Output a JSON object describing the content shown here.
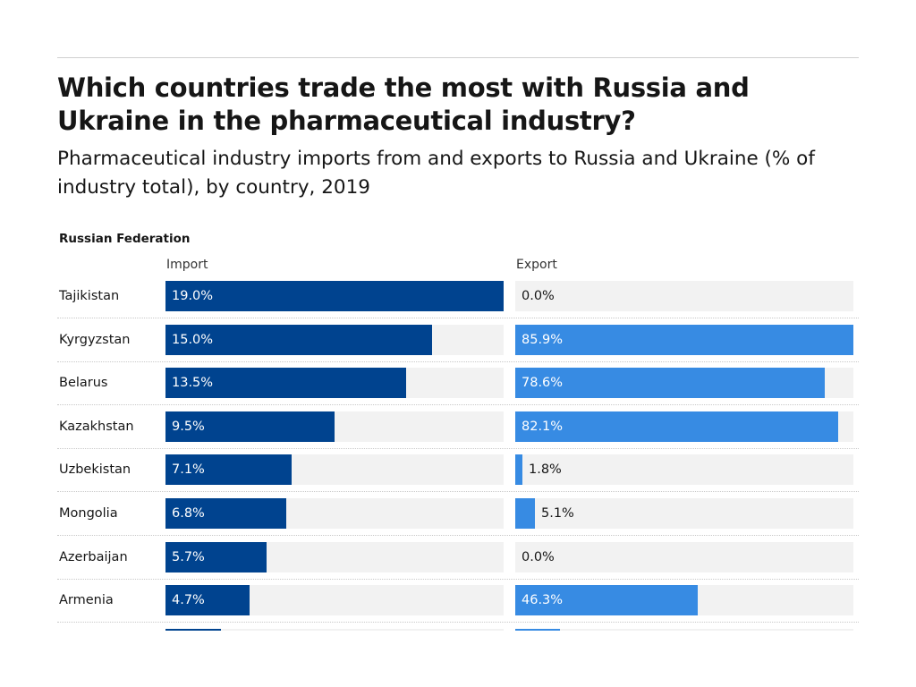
{
  "header": {
    "title": "Which countries trade the most with Russia and Ukraine in the pharmaceutical industry?",
    "subtitle": "Pharmaceutical industry imports from and exports to Russia and Ukraine (% of industry total), by country, 2019"
  },
  "chart_data": {
    "type": "bar",
    "orientation": "horizontal",
    "group": "Russian Federation",
    "columns": [
      "Import",
      "Export"
    ],
    "colors": {
      "Import": "#00438f",
      "Export": "#378be3",
      "track": "#f2f2f2"
    },
    "rows": [
      {
        "country": "Tajikistan",
        "import": 19.0,
        "import_label": "19.0%",
        "export": 0.0,
        "export_label": "0.0%"
      },
      {
        "country": "Kyrgyzstan",
        "import": 15.0,
        "import_label": "15.0%",
        "export": 85.9,
        "export_label": "85.9%"
      },
      {
        "country": "Belarus",
        "import": 13.5,
        "import_label": "13.5%",
        "export": 78.6,
        "export_label": "78.6%"
      },
      {
        "country": "Kazakhstan",
        "import": 9.5,
        "import_label": "9.5%",
        "export": 82.1,
        "export_label": "82.1%"
      },
      {
        "country": "Uzbekistan",
        "import": 7.1,
        "import_label": "7.1%",
        "export": 1.8,
        "export_label": "1.8%"
      },
      {
        "country": "Mongolia",
        "import": 6.8,
        "import_label": "6.8%",
        "export": 5.1,
        "export_label": "5.1%"
      },
      {
        "country": "Azerbaijan",
        "import": 5.7,
        "import_label": "5.7%",
        "export": 0.0,
        "export_label": "0.0%"
      },
      {
        "country": "Armenia",
        "import": 4.7,
        "import_label": "4.7%",
        "export": 46.3,
        "export_label": "46.3%"
      },
      {
        "country": "",
        "import": 3.1,
        "import_label": "",
        "export": 11.4,
        "export_label": ""
      }
    ],
    "import_max": 19.0,
    "export_max": 85.9
  }
}
